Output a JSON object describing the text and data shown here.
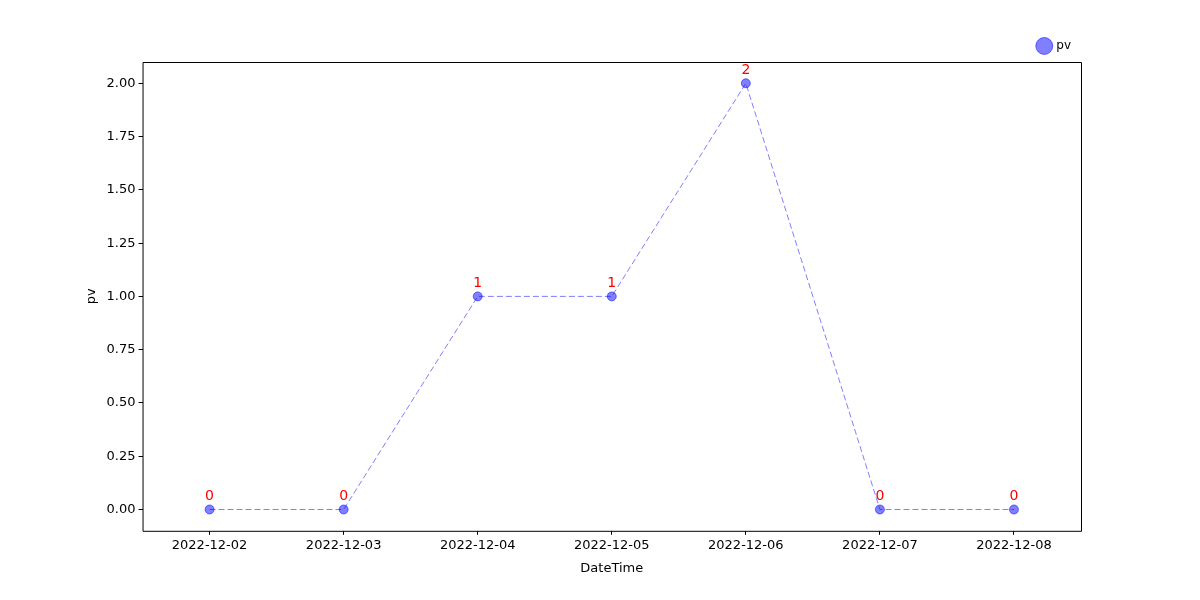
{
  "chart_data": {
    "type": "line",
    "xlabel": "DateTime",
    "ylabel": "pv",
    "categories": [
      "2022-12-02",
      "2022-12-03",
      "2022-12-04",
      "2022-12-05",
      "2022-12-06",
      "2022-12-07",
      "2022-12-08"
    ],
    "series": [
      {
        "name": "pv",
        "color": "#0000ff",
        "values": [
          0,
          0,
          1,
          1,
          2,
          0,
          0
        ]
      }
    ],
    "ylim": [
      -0.1,
      2.1
    ],
    "yticks": [
      {
        "value": 0,
        "label": "0.00"
      },
      {
        "value": 0.25,
        "label": "0.25"
      },
      {
        "value": 0.5,
        "label": "0.50"
      },
      {
        "value": 0.75,
        "label": "0.75"
      },
      {
        "value": 1,
        "label": "1.00"
      },
      {
        "value": 1.25,
        "label": "1.25"
      },
      {
        "value": 1.5,
        "label": "1.50"
      },
      {
        "value": 1.75,
        "label": "1.75"
      },
      {
        "value": 2,
        "label": "2.00"
      }
    ],
    "grid": false,
    "legend": "top right",
    "marker": "circle",
    "line_style": "dashed",
    "data_labels": true
  }
}
